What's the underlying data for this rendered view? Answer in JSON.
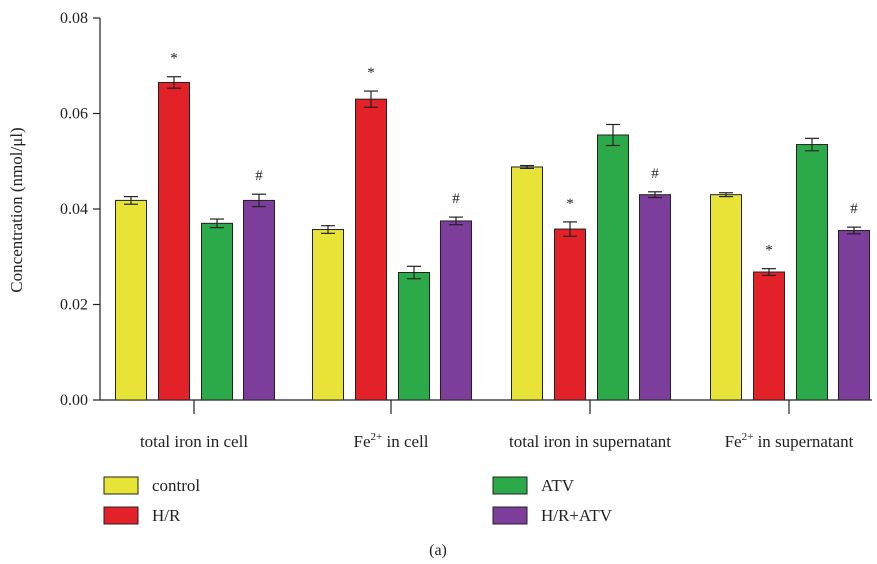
{
  "chart_data": {
    "type": "bar",
    "ylabel": "Concentration (nmol/μl)",
    "ylim": [
      0,
      0.08
    ],
    "yticks": [
      "0.00",
      "0.02",
      "0.04",
      "0.06",
      "0.08"
    ],
    "categories": [
      {
        "pre": "total iron in cell",
        "sup": "",
        "post": ""
      },
      {
        "pre": "Fe",
        "sup": "2+",
        "post": " in cell"
      },
      {
        "pre": "total iron in supernatant",
        "sup": "",
        "post": ""
      },
      {
        "pre": "Fe",
        "sup": "2+",
        "post": " in supernatant"
      }
    ],
    "series": [
      {
        "name": "control",
        "color": "#e8e337",
        "values": [
          0.0418,
          0.0357,
          0.0488,
          0.043
        ],
        "errors": [
          0.0008,
          0.0008,
          0.0003,
          0.0004
        ],
        "annotations": [
          "",
          "",
          "",
          ""
        ]
      },
      {
        "name": "H/R",
        "color": "#e32129",
        "values": [
          0.0665,
          0.063,
          0.0358,
          0.0268
        ],
        "errors": [
          0.0012,
          0.0017,
          0.0015,
          0.0007
        ],
        "annotations": [
          "*",
          "*",
          "*",
          "*"
        ]
      },
      {
        "name": "ATV",
        "color": "#2caa4a",
        "values": [
          0.037,
          0.0267,
          0.0555,
          0.0535
        ],
        "errors": [
          0.0009,
          0.0013,
          0.0022,
          0.0013
        ],
        "annotations": [
          "",
          "",
          "",
          ""
        ]
      },
      {
        "name": "H/R+ATV",
        "color": "#7d3d9b",
        "values": [
          0.0418,
          0.0375,
          0.043,
          0.0355
        ],
        "errors": [
          0.0013,
          0.0008,
          0.0006,
          0.0007
        ],
        "annotations": [
          "#",
          "#",
          "#",
          "#"
        ]
      }
    ],
    "legend_position": "bottom",
    "caption": "(a)"
  }
}
